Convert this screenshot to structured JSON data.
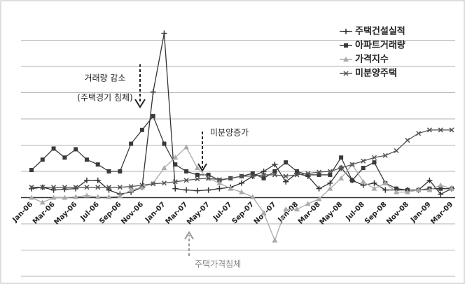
{
  "chart_data": {
    "type": "line",
    "categories": [
      "Jan-06",
      null,
      "Mar-06",
      null,
      "May-06",
      null,
      "Jul-06",
      null,
      "Sep-06",
      null,
      "Nov-06",
      null,
      "Jan-07",
      null,
      "Mar-07",
      null,
      "May-07",
      null,
      "Jul-07",
      null,
      "Sep-07",
      null,
      "Nov-07",
      null,
      "Jan-08",
      null,
      "Mar-08",
      null,
      "May-08",
      null,
      "Jul-08",
      null,
      "Sep-08",
      null,
      "Nov-08",
      null,
      "Jan-09",
      null,
      "Mar-09"
    ],
    "series": [
      {
        "name": "주택건설실적",
        "color": "#333333",
        "marker": "plus",
        "values": [
          13,
          15,
          11,
          12,
          13,
          25,
          25,
          11,
          5,
          8,
          15,
          153,
          238,
          13,
          11,
          10,
          11,
          13,
          15,
          21,
          31,
          38,
          48,
          23,
          35,
          31,
          13,
          21,
          43,
          25,
          18,
          21,
          11,
          11,
          11,
          11,
          25,
          5,
          13
        ]
      },
      {
        "name": "아파트거래량",
        "color": "#3a3a3a",
        "marker": "square",
        "values": [
          40,
          55,
          71,
          58,
          70,
          55,
          48,
          38,
          38,
          78,
          98,
          118,
          78,
          48,
          38,
          33,
          33,
          25,
          28,
          31,
          35,
          28,
          38,
          51,
          38,
          33,
          33,
          33,
          58,
          25,
          43,
          51,
          21,
          13,
          11,
          11,
          13,
          13,
          13
        ]
      },
      {
        "name": "가격지수",
        "color": "#aaaaaa",
        "marker": "triangle",
        "values": [
          0,
          -7,
          0,
          0,
          1,
          3,
          1,
          1,
          2,
          11,
          15,
          21,
          43,
          58,
          73,
          43,
          28,
          21,
          13,
          8,
          1,
          -22,
          -62,
          -17,
          -17,
          -9,
          -2,
          13,
          28,
          48,
          23,
          13,
          21,
          8,
          8,
          11,
          11,
          18,
          13
        ]
      },
      {
        "name": "미분양주택",
        "color": "#555555",
        "marker": "cross",
        "values": [
          15,
          15,
          15,
          15,
          15,
          15,
          15,
          15,
          15,
          16,
          18,
          20,
          21,
          23,
          25,
          27,
          28,
          26,
          28,
          31,
          31,
          33,
          33,
          31,
          33,
          35,
          37,
          38,
          43,
          48,
          53,
          58,
          61,
          68,
          83,
          93,
          98,
          98,
          98
        ]
      }
    ],
    "ylim": [
      -114,
      266
    ],
    "yticks": [
      -114,
      -76,
      -38,
      0,
      38,
      76,
      114,
      152,
      190,
      228
    ],
    "grid": true,
    "legend": "top-right",
    "annotations": [
      "거래량 감소",
      "(주택경기 침체)",
      "미분양증가",
      "주택가격침체"
    ]
  }
}
